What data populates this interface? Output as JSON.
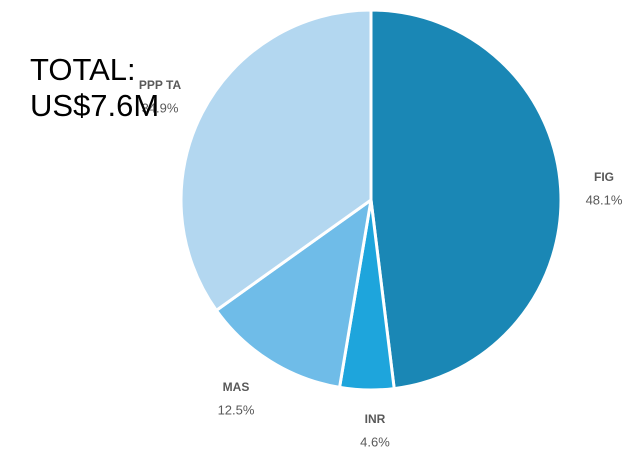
{
  "chart_data": {
    "type": "pie",
    "title": [
      "TOTAL:",
      "US$7.6M"
    ],
    "categories": [
      "FIG",
      "INR",
      "MAS",
      "PPP TA"
    ],
    "values": [
      48.1,
      4.6,
      12.5,
      34.9
    ],
    "value_labels": [
      "48.1%",
      "4.6%",
      "12.5%",
      "34.9%"
    ],
    "colors": [
      "#1a87b5",
      "#1ea5dc",
      "#6fbce8",
      "#b3d7f0"
    ]
  }
}
